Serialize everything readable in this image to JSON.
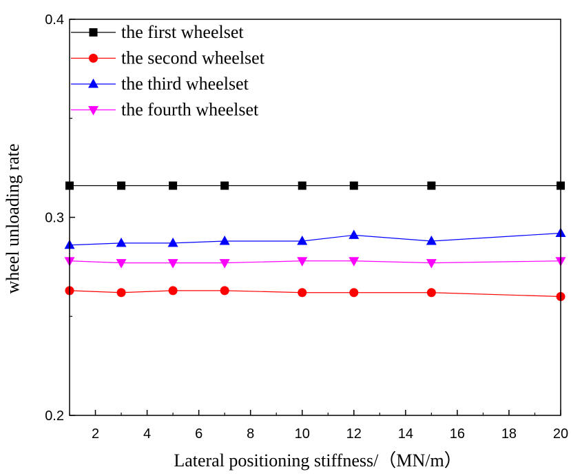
{
  "chart_data": {
    "type": "line",
    "title": "",
    "xlabel": "Lateral positioning stiffness/（MN/m）",
    "ylabel": "wheel unloading rate",
    "xlim": [
      1,
      20
    ],
    "ylim": [
      0.2,
      0.4
    ],
    "xticks": [
      2,
      4,
      6,
      8,
      10,
      12,
      14,
      16,
      18,
      20
    ],
    "yticks": [
      0.2,
      0.3,
      0.4
    ],
    "grid": false,
    "legend_position": "top-left",
    "x": [
      1,
      3,
      5,
      7,
      10,
      12,
      15,
      20
    ],
    "series": [
      {
        "name": "the first wheelset",
        "color": "#000000",
        "marker": "square",
        "values": [
          0.316,
          0.316,
          0.316,
          0.316,
          0.316,
          0.316,
          0.316,
          0.316
        ]
      },
      {
        "name": "the second wheelset",
        "color": "#ff0000",
        "marker": "circle",
        "values": [
          0.263,
          0.262,
          0.263,
          0.263,
          0.262,
          0.262,
          0.262,
          0.26
        ]
      },
      {
        "name": "the third wheelset",
        "color": "#0000ff",
        "marker": "triangle-up",
        "values": [
          0.286,
          0.287,
          0.287,
          0.288,
          0.288,
          0.291,
          0.288,
          0.292
        ]
      },
      {
        "name": "the fourth wheelset",
        "color": "#ff00ff",
        "marker": "triangle-down",
        "values": [
          0.278,
          0.277,
          0.277,
          0.277,
          0.278,
          0.278,
          0.277,
          0.278
        ]
      }
    ]
  }
}
